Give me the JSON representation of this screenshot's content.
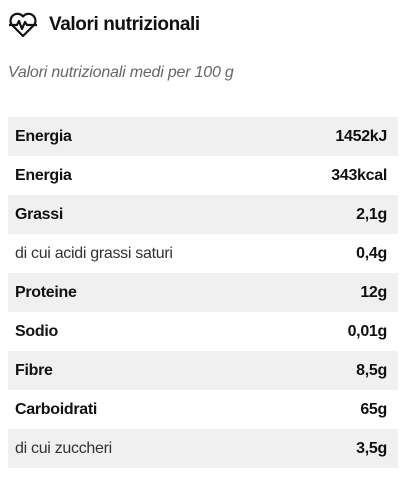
{
  "header": {
    "title": "Valori nutrizionali"
  },
  "subtitle": "Valori nutrizionali medi per 100 g",
  "table": {
    "rows": [
      [
        "Energia",
        "1452kJ"
      ],
      [
        "Energia",
        "343kcal"
      ],
      [
        "Grassi",
        "2,1g"
      ],
      [
        "di cui acidi grassi saturi",
        "0,4g"
      ],
      [
        "Proteine",
        "12g"
      ],
      [
        "Sodio",
        "0,01g"
      ],
      [
        "Fibre",
        "8,5g"
      ],
      [
        "Carboidrati",
        "65g"
      ],
      [
        "di cui zuccheri",
        "3,5g"
      ]
    ]
  }
}
